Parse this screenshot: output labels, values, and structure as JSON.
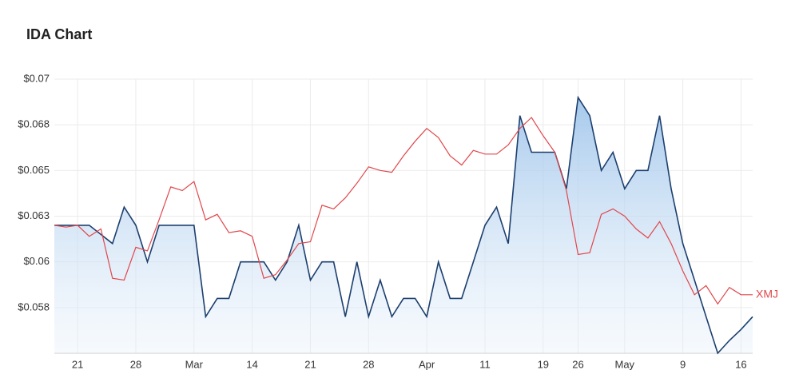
{
  "chart_data": {
    "type": "line",
    "title": "IDA Chart",
    "categories": [
      null,
      null,
      "21",
      null,
      null,
      null,
      null,
      "28",
      null,
      null,
      null,
      null,
      "Mar",
      null,
      null,
      null,
      null,
      "14",
      null,
      null,
      null,
      null,
      "21",
      null,
      null,
      null,
      null,
      "28",
      null,
      null,
      null,
      null,
      "Apr",
      null,
      null,
      null,
      null,
      "11",
      null,
      null,
      null,
      null,
      "19",
      null,
      null,
      "26",
      null,
      null,
      null,
      "May",
      null,
      null,
      null,
      null,
      "9",
      null,
      null,
      null,
      null,
      "16",
      null
    ],
    "series": [
      {
        "color": "#1c3f6e",
        "area": true,
        "values": [
          0.062,
          0.062,
          0.062,
          0.062,
          0.0615,
          0.061,
          0.063,
          0.062,
          0.06,
          0.062,
          0.062,
          0.062,
          0.062,
          0.057,
          0.058,
          0.058,
          0.06,
          0.06,
          0.06,
          0.059,
          0.06,
          0.062,
          0.059,
          0.06,
          0.06,
          0.057,
          0.06,
          0.057,
          0.059,
          0.057,
          0.058,
          0.058,
          0.057,
          0.06,
          0.058,
          0.058,
          0.06,
          0.062,
          0.063,
          0.061,
          0.068,
          0.066,
          0.066,
          0.066,
          0.064,
          0.069,
          0.068,
          0.065,
          0.066,
          0.064,
          0.065,
          0.065,
          0.068,
          0.064,
          0.061,
          0.059,
          0.057,
          0.055,
          0.0557,
          0.0563,
          0.057
        ]
      },
      {
        "name": "XMJ",
        "color": "#e0474c",
        "values": [
          0.062,
          0.0619,
          0.062,
          0.0614,
          0.0618,
          0.0591,
          0.059,
          0.0608,
          0.0606,
          0.0623,
          0.0641,
          0.0639,
          0.0644,
          0.0623,
          0.0626,
          0.0616,
          0.0617,
          0.0614,
          0.0591,
          0.0593,
          0.0601,
          0.061,
          0.0611,
          0.0631,
          0.0629,
          0.0635,
          0.0643,
          0.0652,
          0.065,
          0.0649,
          0.0658,
          0.0666,
          0.0673,
          0.0668,
          0.0658,
          0.0653,
          0.0661,
          0.0659,
          0.0659,
          0.0664,
          0.0673,
          0.0679,
          0.0669,
          0.066,
          0.0639,
          0.0604,
          0.0605,
          0.0626,
          0.0629,
          0.0625,
          0.0618,
          0.0613,
          0.0622,
          0.061,
          0.0595,
          0.0582,
          0.0587,
          0.0577,
          0.0586,
          0.0582,
          0.0582
        ]
      }
    ],
    "ylim": [
      0.055,
      0.07
    ],
    "yticks": [
      {
        "value": 0.0575,
        "label": "$0.058"
      },
      {
        "value": 0.06,
        "label": "$0.06"
      },
      {
        "value": 0.0625,
        "label": "$0.063"
      },
      {
        "value": 0.065,
        "label": "$0.065"
      },
      {
        "value": 0.0675,
        "label": "$0.068"
      },
      {
        "value": 0.07,
        "label": "$0.07"
      }
    ],
    "grid": true
  }
}
